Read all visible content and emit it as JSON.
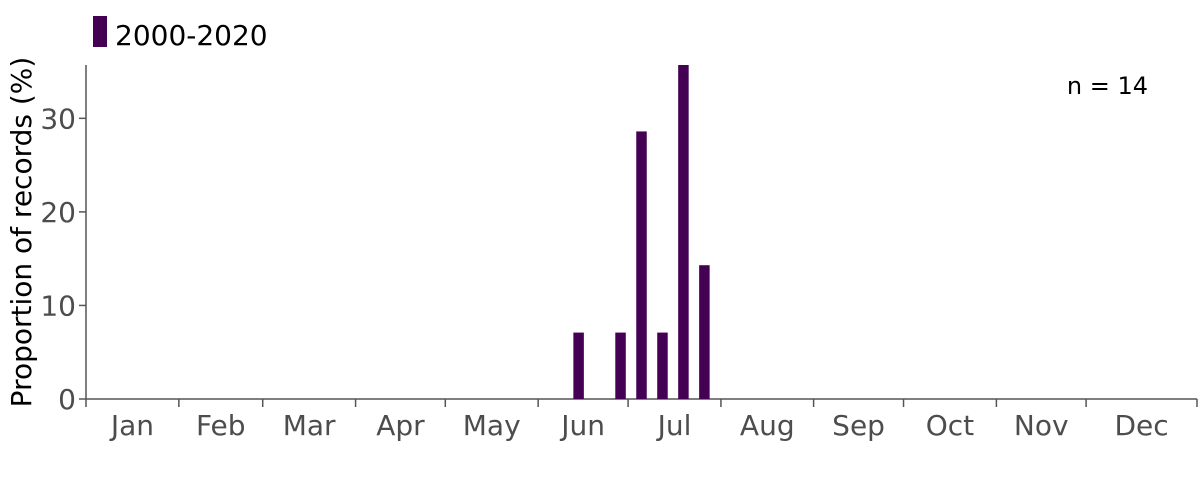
{
  "chart_data": {
    "type": "bar",
    "months": [
      "Jan",
      "Feb",
      "Mar",
      "Apr",
      "May",
      "Jun",
      "Jul",
      "Aug",
      "Sep",
      "Oct",
      "Nov",
      "Dec"
    ],
    "x_unit": "week of year",
    "series": [
      {
        "name": "2000-2020",
        "color": "#440154",
        "points": [
          {
            "week": 24,
            "value": 7.1
          },
          {
            "week": 26,
            "value": 7.1
          },
          {
            "week": 27,
            "value": 28.6
          },
          {
            "week": 28,
            "value": 7.1
          },
          {
            "week": 29,
            "value": 35.7
          },
          {
            "week": 30,
            "value": 14.3
          }
        ]
      }
    ],
    "title": "",
    "xlabel": "",
    "ylabel": "Proportion of records (%)",
    "ylim": [
      0,
      35.7
    ],
    "yticks": [
      0,
      10,
      20,
      30
    ],
    "annotation": "n = 14",
    "legend": "top-left",
    "grid": false
  }
}
